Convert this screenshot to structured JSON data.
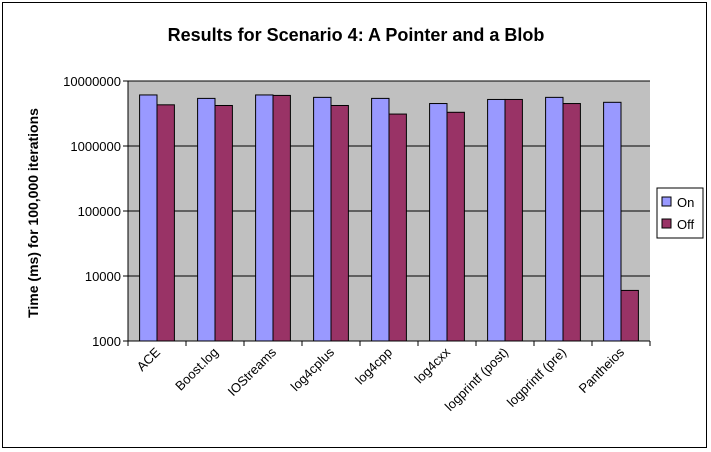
{
  "chart_data": {
    "type": "bar",
    "title": "Results for Scenario 4: A Pointer and a Blob",
    "xlabel": "",
    "ylabel": "Time (ms) for 100,000 iterations",
    "yscale": "log",
    "ylim": [
      1000,
      10000000
    ],
    "ytick_labels": [
      "1000",
      "10000",
      "100000",
      "1000000",
      "10000000"
    ],
    "grid": "horizontal major gridlines",
    "legend_position": "right",
    "categories": [
      "ACE",
      "Boost.log",
      "IOStreams",
      "log4cplus",
      "log4cpp",
      "log4cxx",
      "logprintf (post)",
      "logprintf (pre)",
      "Pantheios"
    ],
    "series": [
      {
        "name": "On",
        "color": "#9999ff",
        "values": [
          6100000,
          5400000,
          6100000,
          5600000,
          5400000,
          4500000,
          5200000,
          5600000,
          4700000
        ]
      },
      {
        "name": "Off",
        "color": "#993366",
        "values": [
          4300000,
          4200000,
          6000000,
          4200000,
          3100000,
          3300000,
          5200000,
          4500000,
          6000
        ]
      }
    ],
    "plot_background": "#c0c0c0"
  }
}
